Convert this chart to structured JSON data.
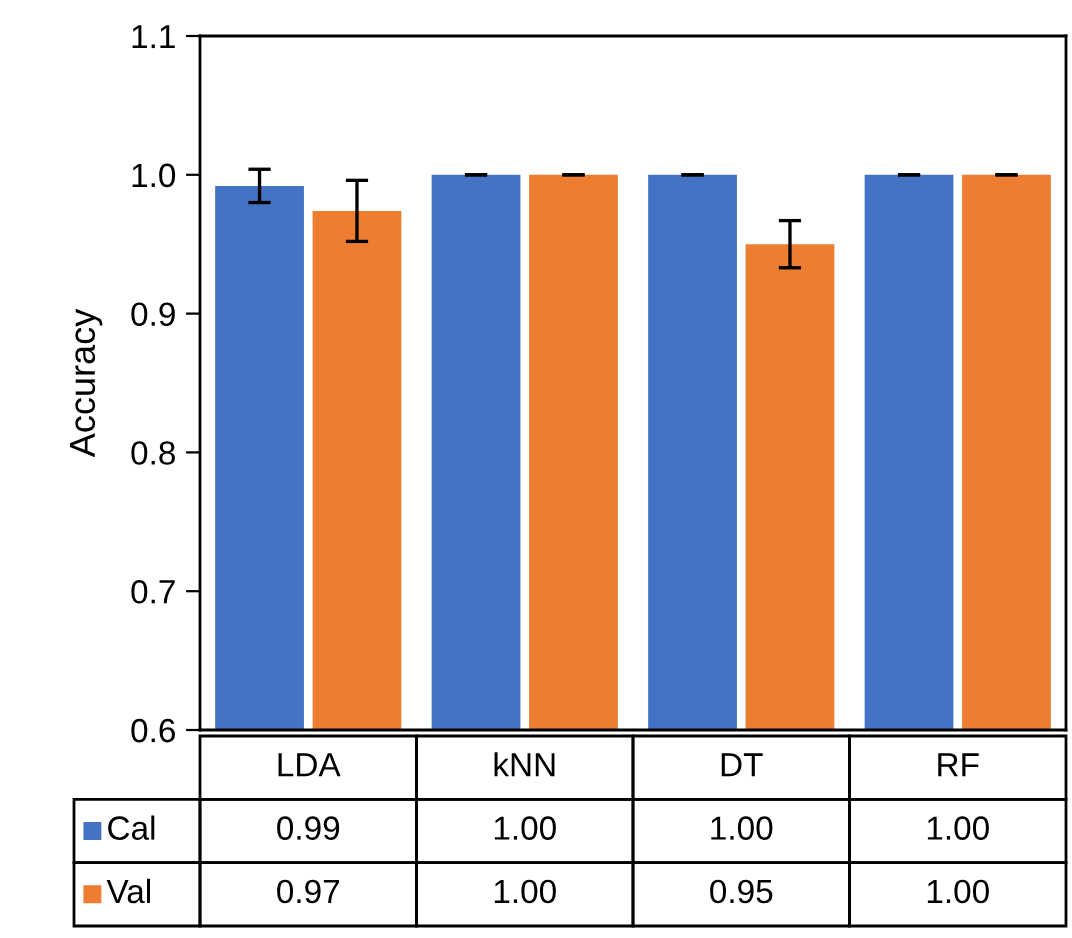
{
  "chart_data": {
    "type": "bar",
    "ylabel": "Accuracy",
    "categories": [
      "LDA",
      "kNN",
      "DT",
      "RF"
    ],
    "series": [
      {
        "name": "Cal",
        "color": "#4472c4",
        "values": [
          0.992,
          1.0,
          1.0,
          1.0
        ],
        "errors": [
          0.012,
          0,
          0,
          0
        ],
        "value_labels": [
          "0.99",
          "1.00",
          "1.00",
          "1.00"
        ]
      },
      {
        "name": "Val",
        "color": "#ed7d31",
        "values": [
          0.974,
          1.0,
          0.95,
          1.0
        ],
        "errors": [
          0.022,
          0,
          0.017,
          0
        ],
        "value_labels": [
          "0.97",
          "1.00",
          "0.95",
          "1.00"
        ]
      }
    ],
    "ylim": [
      0.6,
      1.1
    ],
    "yticks": [
      {
        "value": 0.6,
        "label": "0.6"
      },
      {
        "value": 0.7,
        "label": "0.7"
      },
      {
        "value": 0.8,
        "label": "0.8"
      },
      {
        "value": 0.9,
        "label": "0.9"
      },
      {
        "value": 1.0,
        "label": "1.0"
      },
      {
        "value": 1.1,
        "label": "1.1"
      }
    ],
    "legend": "bottom",
    "grid": false
  }
}
